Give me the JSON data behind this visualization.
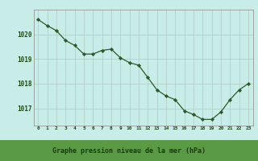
{
  "x": [
    0,
    1,
    2,
    3,
    4,
    5,
    6,
    7,
    8,
    9,
    10,
    11,
    12,
    13,
    14,
    15,
    16,
    17,
    18,
    19,
    20,
    21,
    22,
    23
  ],
  "y": [
    1020.6,
    1020.35,
    1020.15,
    1019.75,
    1019.55,
    1019.2,
    1019.2,
    1019.35,
    1019.4,
    1019.05,
    1018.85,
    1018.75,
    1018.25,
    1017.75,
    1017.5,
    1017.35,
    1016.9,
    1016.75,
    1016.55,
    1016.55,
    1016.85,
    1017.35,
    1017.75,
    1018.0
  ],
  "xlabel": "Graphe pression niveau de la mer (hPa)",
  "xlim": [
    -0.5,
    23.5
  ],
  "ylim": [
    1016.3,
    1021.0
  ],
  "yticks": [
    1017,
    1018,
    1019,
    1020
  ],
  "xticks": [
    0,
    1,
    2,
    3,
    4,
    5,
    6,
    7,
    8,
    9,
    10,
    11,
    12,
    13,
    14,
    15,
    16,
    17,
    18,
    19,
    20,
    21,
    22,
    23
  ],
  "line_color": "#2d5a27",
  "marker_color": "#2d5a27",
  "bg_color": "#c8ede8",
  "grid_color": "#b0c8c4",
  "xlabel_color": "#1a4a10",
  "xlabel_bg": "#5a9a45",
  "xlabel_text_color": "#1a3a10",
  "spine_color": "#888888",
  "fig_width": 3.2,
  "fig_height": 2.0,
  "dpi": 100
}
